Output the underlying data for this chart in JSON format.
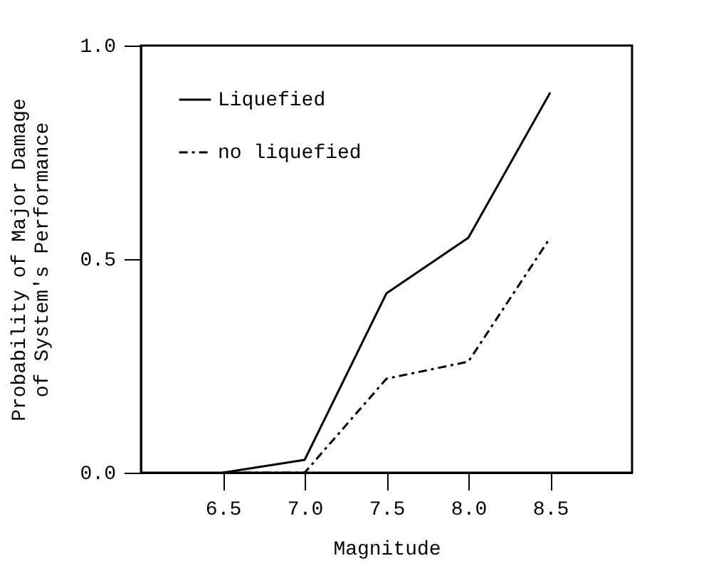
{
  "chart_data": {
    "type": "line",
    "xlabel": "Magnitude",
    "ylabel": "Probability of Major Damage\nof System's Performance",
    "x": [
      6.5,
      7.0,
      7.5,
      8.0,
      8.5
    ],
    "series": [
      {
        "name": "Liquefied",
        "color": "#000000",
        "line_style": "solid",
        "values": [
          0.0,
          0.03,
          0.42,
          0.55,
          0.89
        ]
      },
      {
        "name": "no liquefied",
        "color": "#000000",
        "line_style": "dashdot",
        "values": [
          0.0,
          0.0,
          0.22,
          0.26,
          0.55
        ]
      }
    ],
    "xlim": [
      6.0,
      9.0
    ],
    "ylim": [
      0.0,
      1.0
    ],
    "xticks": [
      {
        "value": 6.5,
        "label": "6.5"
      },
      {
        "value": 7,
        "label": "7.0"
      },
      {
        "value": 7.5,
        "label": "7.5"
      },
      {
        "value": 8,
        "label": "8.0"
      },
      {
        "value": 8.5,
        "label": "8.5"
      }
    ],
    "yticks": [
      {
        "value": 0,
        "label": "0.0"
      },
      {
        "value": 0.5,
        "label": "0.5"
      },
      {
        "value": 1,
        "label": "1.0"
      }
    ],
    "legend": "top left",
    "grid": false,
    "marker": "none"
  }
}
